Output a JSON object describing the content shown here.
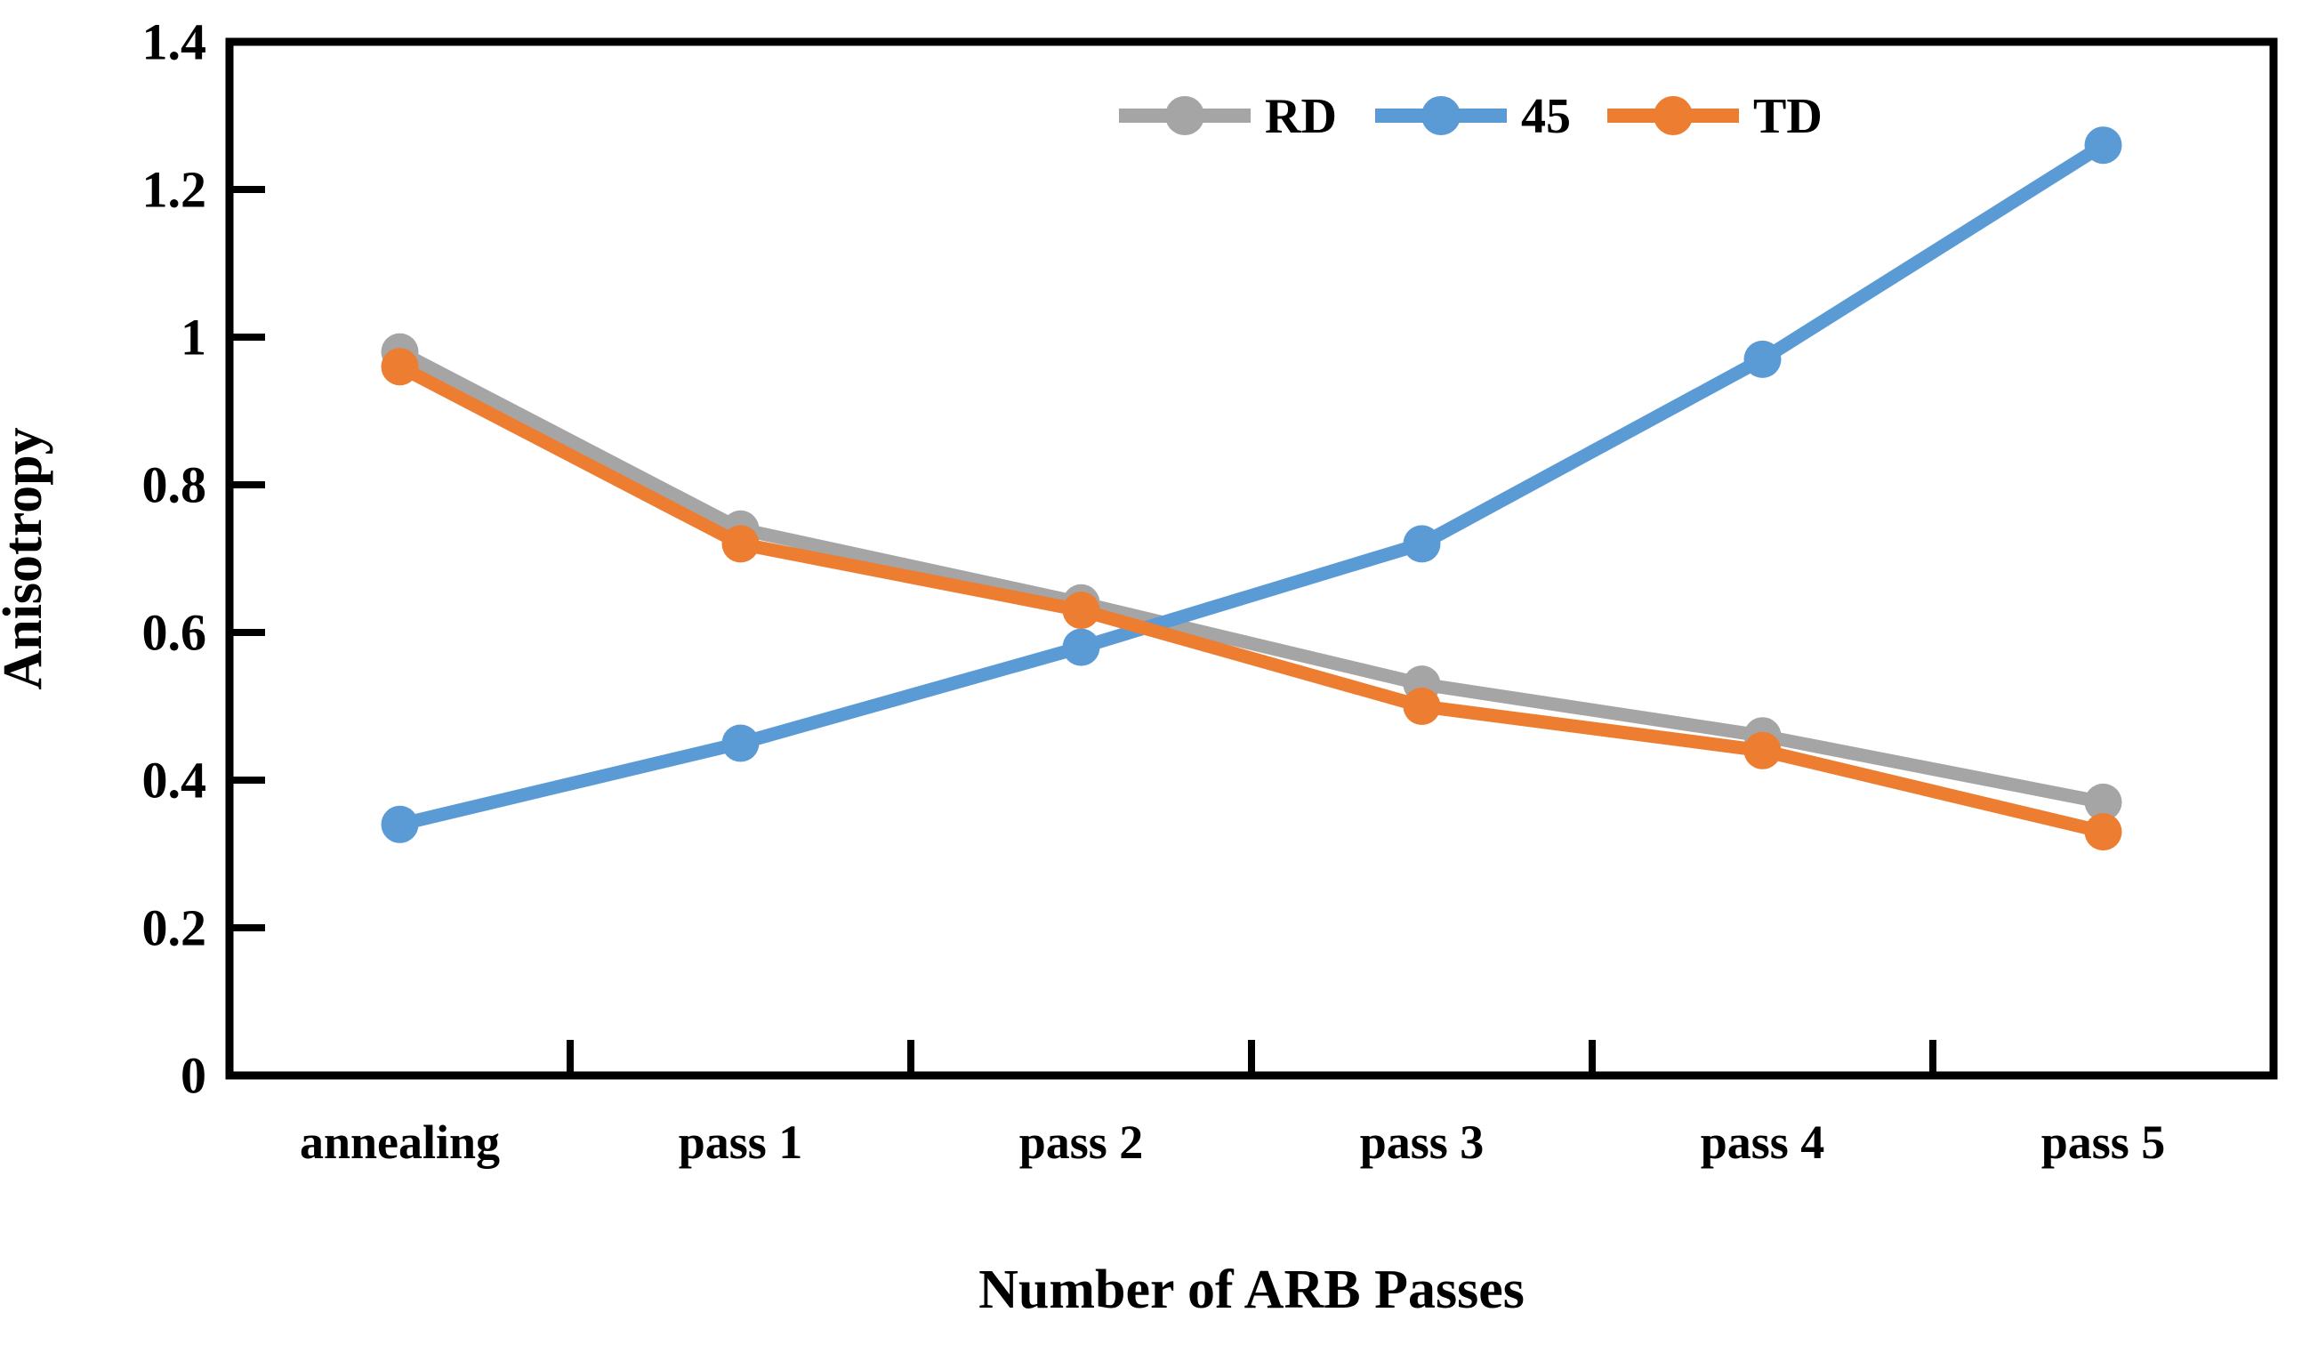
{
  "chart_data": {
    "type": "line",
    "title": "",
    "xlabel": "Number of ARB Passes",
    "ylabel": "Anisotropy",
    "categories": [
      "annealing",
      "pass 1",
      "pass 2",
      "pass 3",
      "pass 4",
      "pass 5"
    ],
    "ylim": [
      0,
      1.4
    ],
    "y_tick_step": 0.2,
    "y_tick_labels": [
      "0",
      "0.2",
      "0.4",
      "0.6",
      "0.8",
      "1",
      "1.2",
      "1.4"
    ],
    "grid": false,
    "legend_position": "top-center-inside",
    "frame_color": "#000000",
    "background_color": "#ffffff",
    "series": [
      {
        "name": "RD",
        "color": "#A5A5A5",
        "values": [
          0.98,
          0.74,
          0.64,
          0.53,
          0.46,
          0.37
        ]
      },
      {
        "name": "45",
        "color": "#5B9BD5",
        "values": [
          0.34,
          0.45,
          0.58,
          0.72,
          0.97,
          1.26
        ]
      },
      {
        "name": "TD",
        "color": "#ED7D31",
        "values": [
          0.96,
          0.72,
          0.63,
          0.5,
          0.44,
          0.33
        ]
      }
    ]
  }
}
